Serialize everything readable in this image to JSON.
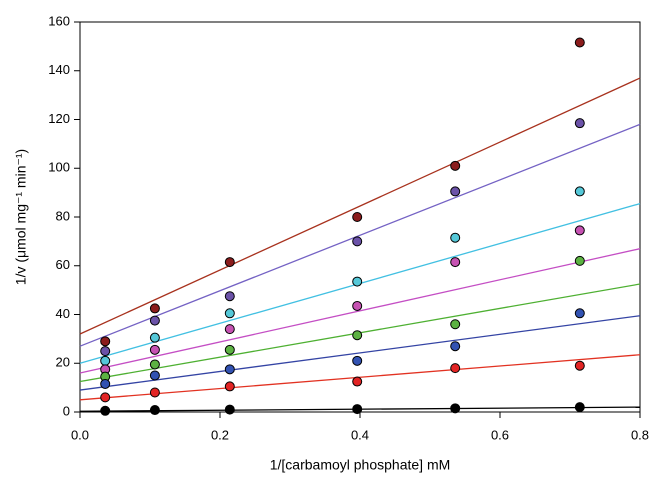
{
  "chart_data": {
    "type": "scatter",
    "xlabel": "1/[carbamoyl phosphate] mM",
    "ylabel": "1/v (μmol mg⁻¹ min⁻¹)",
    "x": [
      0.036,
      0.107,
      0.214,
      0.396,
      0.536,
      0.714
    ],
    "xlim": [
      0,
      0.8
    ],
    "xticks": [
      {
        "value": 0,
        "label": "0.0"
      },
      {
        "value": 0.2,
        "label": "0.2"
      },
      {
        "value": 0.4,
        "label": "0.4"
      },
      {
        "value": 0.6,
        "label": "0.6"
      },
      {
        "value": 0.8,
        "label": "0.8"
      }
    ],
    "ylim": [
      0,
      160
    ],
    "yticks": [
      0,
      20,
      40,
      60,
      80,
      100,
      120,
      140,
      160
    ],
    "series": [
      {
        "color": "#8b1c1c",
        "line_color": "#a8321e",
        "values": [
          29,
          42.5,
          61.5,
          80,
          101,
          151.6
        ],
        "fit_values": [
          32,
          137
        ]
      },
      {
        "color": "#6b52a8",
        "line_color": "#7462c4",
        "values": [
          25,
          37.5,
          47.5,
          70,
          90.5,
          118.5
        ],
        "fit_values": [
          27,
          118
        ]
      },
      {
        "color": "#55c8d8",
        "line_color": "#42c0e2",
        "values": [
          21,
          30.5,
          40.5,
          53.5,
          71.5,
          90.5
        ],
        "fit_values": [
          20,
          85.5
        ]
      },
      {
        "color": "#c652b2",
        "line_color": "#c44ec4",
        "values": [
          17.5,
          25.5,
          34,
          43.5,
          61.5,
          74.5
        ],
        "fit_values": [
          16,
          67
        ]
      },
      {
        "color": "#5cb242",
        "line_color": "#4eb032",
        "values": [
          14.5,
          19.5,
          25.5,
          31.5,
          36,
          62
        ],
        "fit_values": [
          12.5,
          52.5
        ]
      },
      {
        "color": "#3252b2",
        "line_color": "#3444a4",
        "values": [
          11.5,
          15,
          17.5,
          21,
          27,
          40.5
        ],
        "fit_values": [
          9,
          39.5
        ]
      },
      {
        "color": "#e22424",
        "line_color": "#e23222",
        "values": [
          6,
          8,
          10.5,
          12.5,
          18,
          19
        ],
        "fit_values": [
          5,
          23.5
        ]
      },
      {
        "color": "#000000",
        "line_color": "#000000",
        "values": [
          0.5,
          0.8,
          1,
          1.2,
          1.5,
          2
        ],
        "fit_values": [
          0.3,
          2
        ]
      }
    ]
  }
}
